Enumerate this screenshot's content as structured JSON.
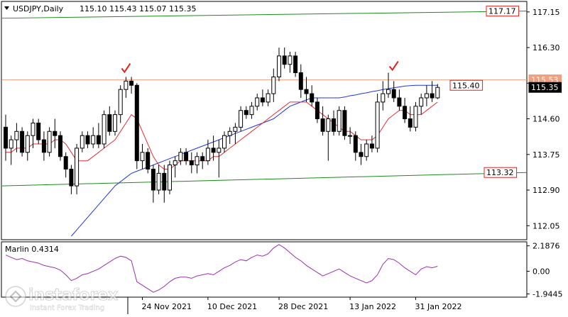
{
  "header": {
    "symbol": "USDJPY,Daily",
    "ohlc": "115.10 115.43 115.07 115.35"
  },
  "indicator": {
    "label": "Marlin 0.4314"
  },
  "watermark": {
    "brand": "instaforex",
    "tagline": "Instant Forex Trading"
  },
  "colors": {
    "background": "#ffffff",
    "candle": "#000000",
    "ma_fast": "#e0303a",
    "ma_slow": "#2433e0",
    "trendline": "#1d8a1d",
    "level_line": "#f0a080",
    "annotation": "#e02020",
    "oscillator": "#9b30b0",
    "current_price_box": "#000000"
  },
  "chart_data": [
    {
      "type": "candlestick",
      "title": "USDJPY,Daily",
      "x_tick_labels": [
        "24 Nov 2021",
        "10 Dec 2021",
        "28 Dec 2021",
        "13 Jan 2022",
        "31 Jan 2022"
      ],
      "y_tick_labels": [
        "117.15",
        "116.30",
        "115.45",
        "114.60",
        "113.75",
        "112.90",
        "112.05"
      ],
      "ylim": [
        111.75,
        117.35
      ],
      "grid": false,
      "candles": [
        [
          114.4,
          114.7,
          113.6,
          113.9
        ],
        [
          113.9,
          114.2,
          113.5,
          114.1
        ],
        [
          114.1,
          114.5,
          113.8,
          114.3
        ],
        [
          114.3,
          114.4,
          113.7,
          113.8
        ],
        [
          113.8,
          114.3,
          113.6,
          114.2
        ],
        [
          114.2,
          114.6,
          113.9,
          114.5
        ],
        [
          114.5,
          114.6,
          114.0,
          114.1
        ],
        [
          114.1,
          114.3,
          113.6,
          113.8
        ],
        [
          113.8,
          114.4,
          113.7,
          114.3
        ],
        [
          114.3,
          114.6,
          113.9,
          114.2
        ],
        [
          114.2,
          114.3,
          113.6,
          113.7
        ],
        [
          113.7,
          113.8,
          113.2,
          113.4
        ],
        [
          113.4,
          113.5,
          112.8,
          113.0
        ],
        [
          113.0,
          114.0,
          112.8,
          113.9
        ],
        [
          113.9,
          114.3,
          113.8,
          114.2
        ],
        [
          114.2,
          114.3,
          113.9,
          114.0
        ],
        [
          114.0,
          114.4,
          113.9,
          114.2
        ],
        [
          114.2,
          114.5,
          113.9,
          114.0
        ],
        [
          114.0,
          114.8,
          113.9,
          114.7
        ],
        [
          114.7,
          114.9,
          114.2,
          114.3
        ],
        [
          114.3,
          114.8,
          114.2,
          114.7
        ],
        [
          114.7,
          115.4,
          114.5,
          115.3
        ],
        [
          115.3,
          115.6,
          115.1,
          115.5
        ],
        [
          115.5,
          115.6,
          115.2,
          115.4
        ],
        [
          115.4,
          115.45,
          113.4,
          113.6
        ],
        [
          113.6,
          114.0,
          113.4,
          113.8
        ],
        [
          113.8,
          113.9,
          113.3,
          113.4
        ],
        [
          113.4,
          113.5,
          112.6,
          112.9
        ],
        [
          112.9,
          113.5,
          112.8,
          113.3
        ],
        [
          113.3,
          113.5,
          112.6,
          112.9
        ],
        [
          112.9,
          113.6,
          112.8,
          113.5
        ],
        [
          113.5,
          113.7,
          113.2,
          113.6
        ],
        [
          113.6,
          113.9,
          113.5,
          113.8
        ],
        [
          113.8,
          113.9,
          113.5,
          113.6
        ],
        [
          113.6,
          113.8,
          113.3,
          113.5
        ],
        [
          113.5,
          113.8,
          113.3,
          113.7
        ],
        [
          113.7,
          113.8,
          113.4,
          113.6
        ],
        [
          113.6,
          114.1,
          113.5,
          113.9
        ],
        [
          113.9,
          114.2,
          113.6,
          113.8
        ],
        [
          113.8,
          114.1,
          113.2,
          113.9
        ],
        [
          113.9,
          114.3,
          113.8,
          114.2
        ],
        [
          114.2,
          114.4,
          114.0,
          114.3
        ],
        [
          114.3,
          114.5,
          114.0,
          114.4
        ],
        [
          114.4,
          114.9,
          114.3,
          114.8
        ],
        [
          114.8,
          114.9,
          114.6,
          114.7
        ],
        [
          114.7,
          115.0,
          114.6,
          114.9
        ],
        [
          114.9,
          115.2,
          114.8,
          115.1
        ],
        [
          115.1,
          115.3,
          114.9,
          115.0
        ],
        [
          115.0,
          115.3,
          114.9,
          115.2
        ],
        [
          115.2,
          115.8,
          115.0,
          115.6
        ],
        [
          115.6,
          116.3,
          115.5,
          116.1
        ],
        [
          116.1,
          116.3,
          115.8,
          115.9
        ],
        [
          115.9,
          116.2,
          115.7,
          116.1
        ],
        [
          116.1,
          116.2,
          115.6,
          115.7
        ],
        [
          115.7,
          115.9,
          115.1,
          115.3
        ],
        [
          115.3,
          115.6,
          115.0,
          115.2
        ],
        [
          115.2,
          115.4,
          114.9,
          115.0
        ],
        [
          115.0,
          115.1,
          114.5,
          114.6
        ],
        [
          114.6,
          114.9,
          114.2,
          114.3
        ],
        [
          114.3,
          114.7,
          113.6,
          114.6
        ],
        [
          114.6,
          114.8,
          114.2,
          114.3
        ],
        [
          114.3,
          114.9,
          114.2,
          114.8
        ],
        [
          114.8,
          114.9,
          114.1,
          114.2
        ],
        [
          114.2,
          114.4,
          114.0,
          114.2
        ],
        [
          114.2,
          114.3,
          113.6,
          113.8
        ],
        [
          113.8,
          114.0,
          113.5,
          113.7
        ],
        [
          113.7,
          114.1,
          113.6,
          114.0
        ],
        [
          114.0,
          114.2,
          113.8,
          113.9
        ],
        [
          113.9,
          115.2,
          113.8,
          115.0
        ],
        [
          115.0,
          115.5,
          114.8,
          115.2
        ],
        [
          115.2,
          115.7,
          115.1,
          115.3
        ],
        [
          115.3,
          115.5,
          115.0,
          115.1
        ],
        [
          115.1,
          115.3,
          114.8,
          114.9
        ],
        [
          114.9,
          115.1,
          114.5,
          114.6
        ],
        [
          114.6,
          114.9,
          114.3,
          114.4
        ],
        [
          114.4,
          115.0,
          114.3,
          114.9
        ],
        [
          114.9,
          115.2,
          114.7,
          115.1
        ],
        [
          115.1,
          115.4,
          114.9,
          115.2
        ],
        [
          115.2,
          115.5,
          115.0,
          115.1
        ],
        [
          115.1,
          115.43,
          115.07,
          115.35
        ]
      ],
      "ma_fast": [
        113.8,
        113.8,
        113.9,
        113.9,
        113.9,
        114.0,
        114.0,
        114.0,
        114.0,
        114.1,
        114.1,
        114.0,
        113.8,
        113.6,
        113.6,
        113.6,
        113.7,
        113.8,
        113.9,
        114.0,
        114.1,
        114.3,
        114.5,
        114.7,
        114.6,
        114.3,
        114.0,
        113.7,
        113.5,
        113.4,
        113.4,
        113.5,
        113.6,
        113.6,
        113.6,
        113.6,
        113.6,
        113.6,
        113.7,
        113.7,
        113.8,
        113.9,
        114.0,
        114.1,
        114.2,
        114.3,
        114.4,
        114.5,
        114.6,
        114.7,
        114.8,
        114.9,
        115.0,
        115.0,
        115.0,
        115.0,
        114.9,
        114.8,
        114.7,
        114.6,
        114.5,
        114.4,
        114.3,
        114.3,
        114.2,
        114.1,
        114.1,
        114.1,
        114.2,
        114.4,
        114.6,
        114.7,
        114.8,
        114.8,
        114.7,
        114.7,
        114.7,
        114.8,
        114.9,
        115.0
      ],
      "ma_slow": [
        null,
        null,
        null,
        null,
        null,
        null,
        null,
        null,
        null,
        null,
        null,
        null,
        111.8,
        111.95,
        112.1,
        112.25,
        112.4,
        112.55,
        112.7,
        112.85,
        113.0,
        113.1,
        113.2,
        113.3,
        113.35,
        113.4,
        113.45,
        113.5,
        113.55,
        113.6,
        113.65,
        113.7,
        113.75,
        113.8,
        113.85,
        113.9,
        113.95,
        114.0,
        114.05,
        114.1,
        114.15,
        114.2,
        114.25,
        114.3,
        114.35,
        114.4,
        114.45,
        114.5,
        114.55,
        114.6,
        114.7,
        114.8,
        114.9,
        114.95,
        115.0,
        115.05,
        115.1,
        115.1,
        115.1,
        115.1,
        115.1,
        115.1,
        115.12,
        115.15,
        115.17,
        115.2,
        115.22,
        115.25,
        115.27,
        115.3,
        115.32,
        115.34,
        115.36,
        115.38,
        115.39,
        115.4,
        115.4,
        115.4,
        115.4,
        115.4
      ],
      "trendlines": [
        {
          "from": [
            0,
            117.0
          ],
          "to": [
            80,
            117.17
          ],
          "color": "green"
        },
        {
          "from": [
            0,
            113.0
          ],
          "to": [
            80,
            113.32
          ],
          "color": "green"
        }
      ],
      "horizontal_level": 115.53,
      "level_labels": [
        {
          "text": "117.17",
          "value": 117.17
        },
        {
          "text": "113.32",
          "value": 113.32
        },
        {
          "text": "115.40",
          "value": 115.4
        },
        {
          "text": "115.53",
          "value": 115.53
        }
      ],
      "current_price": "115.35",
      "annotations": [
        {
          "type": "checkmark",
          "index": 22,
          "value": 115.7
        },
        {
          "type": "checkmark",
          "index": 71,
          "value": 115.75
        }
      ]
    },
    {
      "type": "line",
      "title": "Marlin 0.4314",
      "y_tick_labels": [
        "2.1876",
        "0.00",
        "-1.9445"
      ],
      "ylim": [
        -2.1,
        2.35
      ],
      "series": [
        {
          "name": "Marlin",
          "values": [
            1.4,
            1.2,
            1.0,
            1.1,
            0.9,
            0.8,
            0.7,
            0.5,
            0.4,
            0.3,
            0.1,
            -0.3,
            -0.8,
            -0.6,
            -0.3,
            -0.2,
            0.0,
            0.2,
            0.5,
            0.8,
            1.1,
            1.3,
            1.2,
            0.9,
            -0.9,
            -1.2,
            -1.5,
            -1.8,
            -1.6,
            -1.3,
            -0.9,
            -0.6,
            -0.5,
            -0.5,
            -0.6,
            -0.4,
            -0.3,
            -0.2,
            -0.3,
            0.0,
            0.3,
            0.5,
            0.8,
            1.0,
            0.9,
            1.2,
            1.4,
            1.3,
            1.5,
            2.0,
            2.3,
            2.0,
            1.6,
            1.2,
            0.9,
            0.5,
            0.2,
            -0.1,
            -0.4,
            -0.2,
            0.0,
            0.2,
            -0.1,
            -0.4,
            -0.6,
            -0.8,
            -1.0,
            -0.8,
            -0.3,
            0.6,
            1.1,
            1.0,
            0.7,
            0.3,
            0.0,
            -0.3,
            0.2,
            0.4,
            0.3,
            0.43
          ]
        }
      ]
    }
  ]
}
